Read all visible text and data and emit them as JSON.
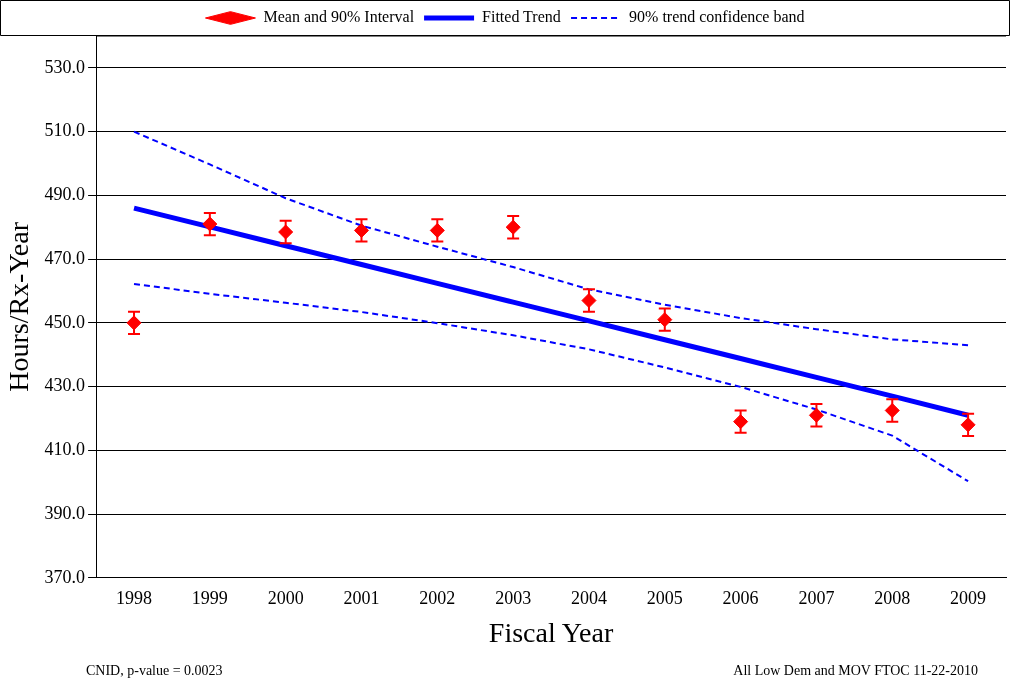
{
  "chart_data": {
    "type": "line",
    "xlabel": "Fiscal Year",
    "ylabel": "Hours/Rx-Year",
    "categories": [
      "1998",
      "1999",
      "2000",
      "2001",
      "2002",
      "2003",
      "2004",
      "2005",
      "2006",
      "2007",
      "2008",
      "2009"
    ],
    "series": [
      {
        "name": "Mean and 90% Interval",
        "type": "scatter",
        "marker": "diamond",
        "color": "#ff0000",
        "values": [
          450,
          481,
          478.5,
          479,
          479,
          480,
          457,
          451,
          419,
          421,
          422.5,
          418
        ],
        "errors": [
          3.5,
          3.5,
          3.5,
          3.5,
          3.5,
          3.5,
          3.5,
          3.5,
          3.5,
          3.5,
          3.5,
          3.5
        ]
      },
      {
        "name": "Fitted Trend",
        "color": "#0000ff",
        "values": [
          486,
          480.1,
          474.2,
          468.3,
          462.4,
          456.5,
          450.6,
          444.7,
          438.8,
          432.9,
          427,
          421
        ]
      },
      {
        "name": "90% trend confidence band",
        "line_style": "dashed",
        "color": "#0000ff",
        "values": [
          510,
          499.7,
          489.1,
          480.5,
          473.9,
          467.5,
          460.5,
          455.7,
          451.5,
          448,
          444.8,
          443
        ]
      },
      {
        "line_style": "dashed",
        "color": "#0000ff",
        "values": [
          462.2,
          459.1,
          456.3,
          453.4,
          449.9,
          446.1,
          441.7,
          436,
          429.9,
          422.8,
          414.6,
          400.3
        ]
      }
    ],
    "ylim": [
      370,
      540
    ],
    "yticks": [
      {
        "value": 370,
        "label": "370.0"
      },
      {
        "value": 390,
        "label": "390.0"
      },
      {
        "value": 410,
        "label": "410.0"
      },
      {
        "value": 430,
        "label": "430.0"
      },
      {
        "value": 450,
        "label": "450.0"
      },
      {
        "value": 470,
        "label": "470.0"
      },
      {
        "value": 490,
        "label": "490.0"
      },
      {
        "value": 510,
        "label": "510.0"
      },
      {
        "value": 530,
        "label": "530.0"
      }
    ],
    "grid": "y",
    "legend": "top",
    "annotations": [
      "CNID, p-value = 0.0023",
      "All Low Dem and MOV FTOC 11-22-2010"
    ]
  }
}
